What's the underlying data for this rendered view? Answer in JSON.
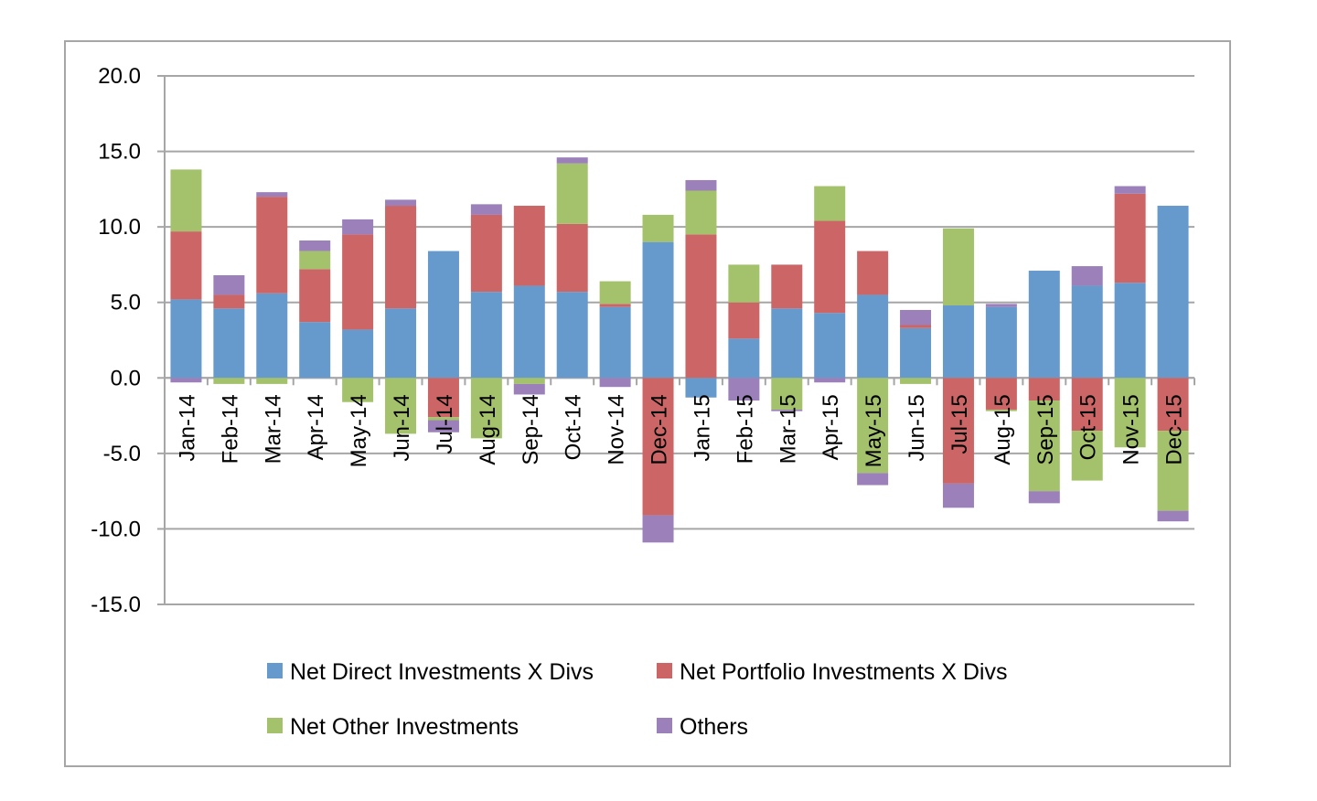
{
  "chart_data": {
    "type": "bar",
    "stacked": true,
    "title": "",
    "xlabel": "",
    "ylabel": "",
    "ylim": [
      -15,
      20
    ],
    "yticks": [
      "20.0",
      "15.0",
      "10.0",
      "5.0",
      "0.0",
      "-5.0",
      "-10.0",
      "-15.0"
    ],
    "grid": true,
    "legend_position": "bottom",
    "categories": [
      "Jan-14",
      "Feb-14",
      "Mar-14",
      "Apr-14",
      "May-14",
      "Jun-14",
      "Jul-14",
      "Aug-14",
      "Sep-14",
      "Oct-14",
      "Nov-14",
      "Dec-14",
      "Jan-15",
      "Feb-15",
      "Mar-15",
      "Apr-15",
      "May-15",
      "Jun-15",
      "Jul-15",
      "Aug-15",
      "Sep-15",
      "Oct-15",
      "Nov-15",
      "Dec-15"
    ],
    "series": [
      {
        "name": "Net Direct Investments X Divs",
        "color": "#6699cc",
        "values": [
          5.2,
          4.6,
          5.6,
          3.7,
          3.2,
          4.6,
          8.4,
          5.7,
          6.1,
          5.7,
          4.7,
          9.0,
          -1.3,
          2.6,
          4.6,
          4.3,
          5.5,
          3.3,
          4.8,
          4.7,
          7.1,
          6.1,
          6.3,
          11.4
        ]
      },
      {
        "name": "Net Portfolio Investments X Divs",
        "color": "#cc6666",
        "values": [
          4.5,
          0.9,
          6.4,
          3.5,
          6.3,
          6.8,
          -2.6,
          5.1,
          5.3,
          4.5,
          0.2,
          -9.1,
          9.5,
          2.4,
          2.9,
          6.1,
          2.9,
          0.2,
          -7.0,
          -2.1,
          -1.5,
          -3.5,
          5.9,
          -3.5
        ]
      },
      {
        "name": "Net Other Investments",
        "color": "#a3c26b",
        "values": [
          4.1,
          -0.4,
          -0.4,
          1.2,
          -1.6,
          -3.7,
          -0.2,
          -4.0,
          -0.4,
          4.0,
          1.5,
          1.8,
          2.9,
          2.5,
          -2.1,
          2.3,
          -6.3,
          -0.4,
          5.1,
          -0.1,
          -6.0,
          -3.3,
          -4.6,
          -5.3
        ]
      },
      {
        "name": "Others",
        "color": "#9b80ba",
        "values": [
          -0.3,
          1.3,
          0.3,
          0.7,
          1.0,
          0.4,
          -0.8,
          0.7,
          -0.7,
          0.4,
          -0.6,
          -1.8,
          0.7,
          -1.5,
          -0.1,
          -0.3,
          -0.8,
          1.0,
          -1.6,
          0.2,
          -0.8,
          1.3,
          0.5,
          -0.7
        ]
      }
    ]
  }
}
